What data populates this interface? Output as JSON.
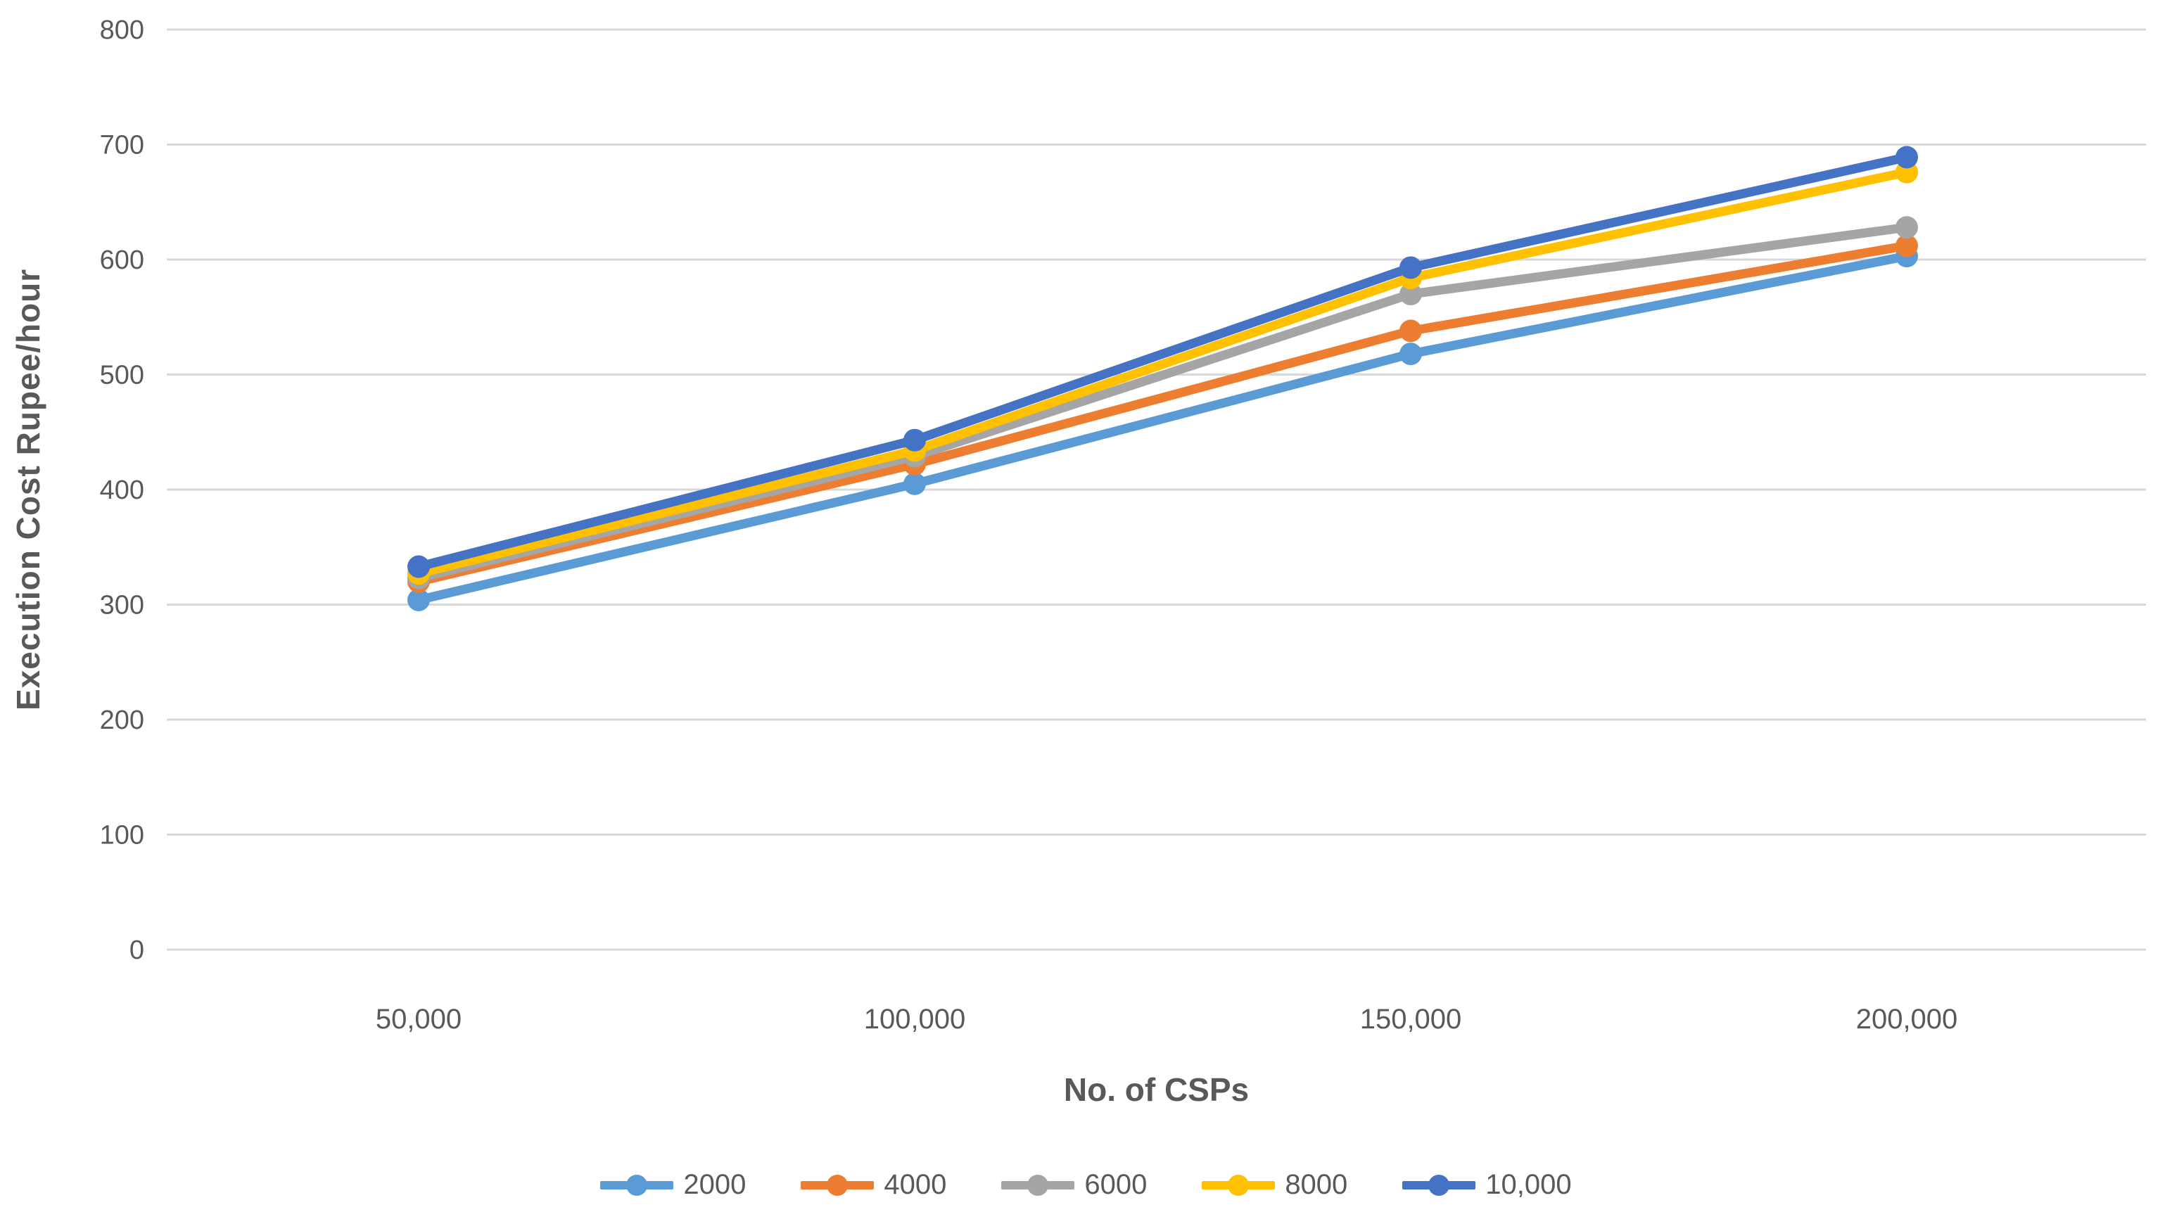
{
  "chart_data": {
    "type": "line",
    "title": "",
    "xlabel": "No. of CSPs",
    "ylabel": "Execution Cost Rupee/hour",
    "categories": [
      "50,000",
      "100,000",
      "150,000",
      "200,000"
    ],
    "series": [
      {
        "name": "2000",
        "color": "#5B9BD5",
        "values": [
          304,
          405,
          518,
          603
        ]
      },
      {
        "name": "4000",
        "color": "#ED7D31",
        "values": [
          320,
          422,
          538,
          612
        ]
      },
      {
        "name": "6000",
        "color": "#A5A5A5",
        "values": [
          323,
          429,
          570,
          628
        ]
      },
      {
        "name": "8000",
        "color": "#FFC000",
        "values": [
          327,
          434,
          584,
          676
        ]
      },
      {
        "name": "10,000",
        "color": "#4472C4",
        "values": [
          333,
          443,
          593,
          689
        ]
      }
    ],
    "ylim": [
      0,
      800
    ],
    "yticks": [
      0,
      100,
      200,
      300,
      400,
      500,
      600,
      700,
      800
    ],
    "grid": true,
    "legend_position": "bottom",
    "style": {
      "text_color": "#595959",
      "grid_color": "#D9D9D9",
      "background": "#FFFFFF"
    }
  }
}
